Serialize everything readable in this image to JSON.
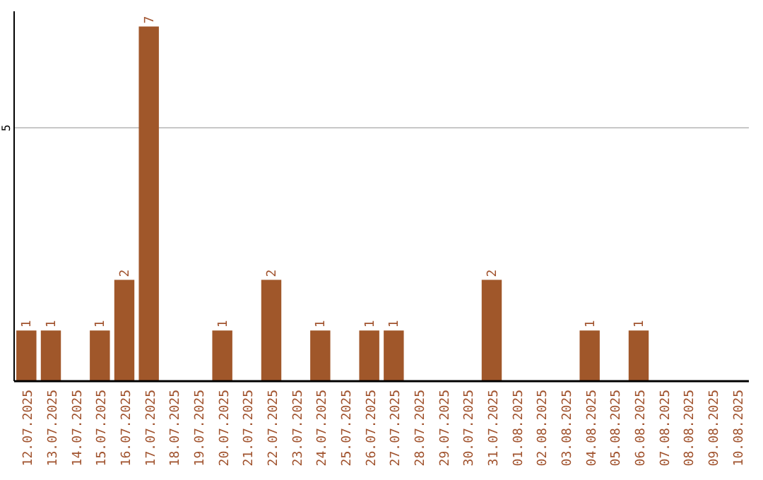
{
  "chart_data": {
    "type": "bar",
    "categories": [
      "12.07.2025",
      "13.07.2025",
      "14.07.2025",
      "15.07.2025",
      "16.07.2025",
      "17.07.2025",
      "18.07.2025",
      "19.07.2025",
      "20.07.2025",
      "21.07.2025",
      "22.07.2025",
      "23.07.2025",
      "24.07.2025",
      "25.07.2025",
      "26.07.2025",
      "27.07.2025",
      "28.07.2025",
      "29.07.2025",
      "30.07.2025",
      "31.07.2025",
      "01.08.2025",
      "02.08.2025",
      "03.08.2025",
      "04.08.2025",
      "05.08.2025",
      "06.08.2025",
      "07.08.2025",
      "08.08.2025",
      "09.08.2025",
      "10.08.2025"
    ],
    "values": [
      1,
      1,
      0,
      1,
      2,
      7,
      0,
      0,
      1,
      0,
      2,
      0,
      1,
      0,
      1,
      1,
      0,
      0,
      0,
      2,
      0,
      0,
      0,
      1,
      0,
      1,
      0,
      0,
      0,
      0
    ],
    "value_labels": [
      "1",
      "1",
      null,
      "1",
      "2",
      "7",
      null,
      null,
      "1",
      null,
      "2",
      null,
      "1",
      null,
      "1",
      "1",
      null,
      null,
      null,
      "2",
      null,
      null,
      null,
      "1",
      null,
      "1",
      null,
      null,
      null,
      null
    ],
    "color": "#a0572a",
    "ylim": [
      0,
      7.3
    ],
    "yticks": [
      5
    ],
    "grid": "y"
  }
}
